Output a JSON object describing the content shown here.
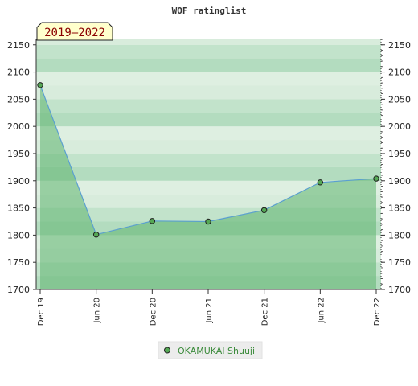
{
  "chart_data": {
    "type": "area",
    "title": "WOF ratinglist",
    "period_label": "2019–2022",
    "x_ticks": [
      "Dec 19",
      "Jun 20",
      "Dec 20",
      "Jun 21",
      "Dec 21",
      "Jun 22",
      "Dec 22"
    ],
    "y_ticks": [
      1700,
      1750,
      1800,
      1850,
      1900,
      1950,
      2000,
      2050,
      2100,
      2150
    ],
    "ylim": [
      1700,
      2160
    ],
    "series": [
      {
        "name": "OKAMUKAI Shuuji",
        "x": [
          "Dec 19",
          "Jun 20",
          "Dec 20",
          "Jun 21",
          "Dec 21",
          "Jun 22",
          "Dec 22"
        ],
        "values": [
          2076,
          1801,
          1826,
          1825,
          1846,
          1897,
          1904
        ]
      }
    ],
    "legend_position": "bottom-center",
    "grid": true,
    "colors": {
      "band_light": "#eef6ef",
      "band_mid": "#d8ecdc",
      "band_dark": "#b3dcbf",
      "fill": "#5fb470",
      "line": "#5a9fd0",
      "marker": "#55a855"
    }
  }
}
